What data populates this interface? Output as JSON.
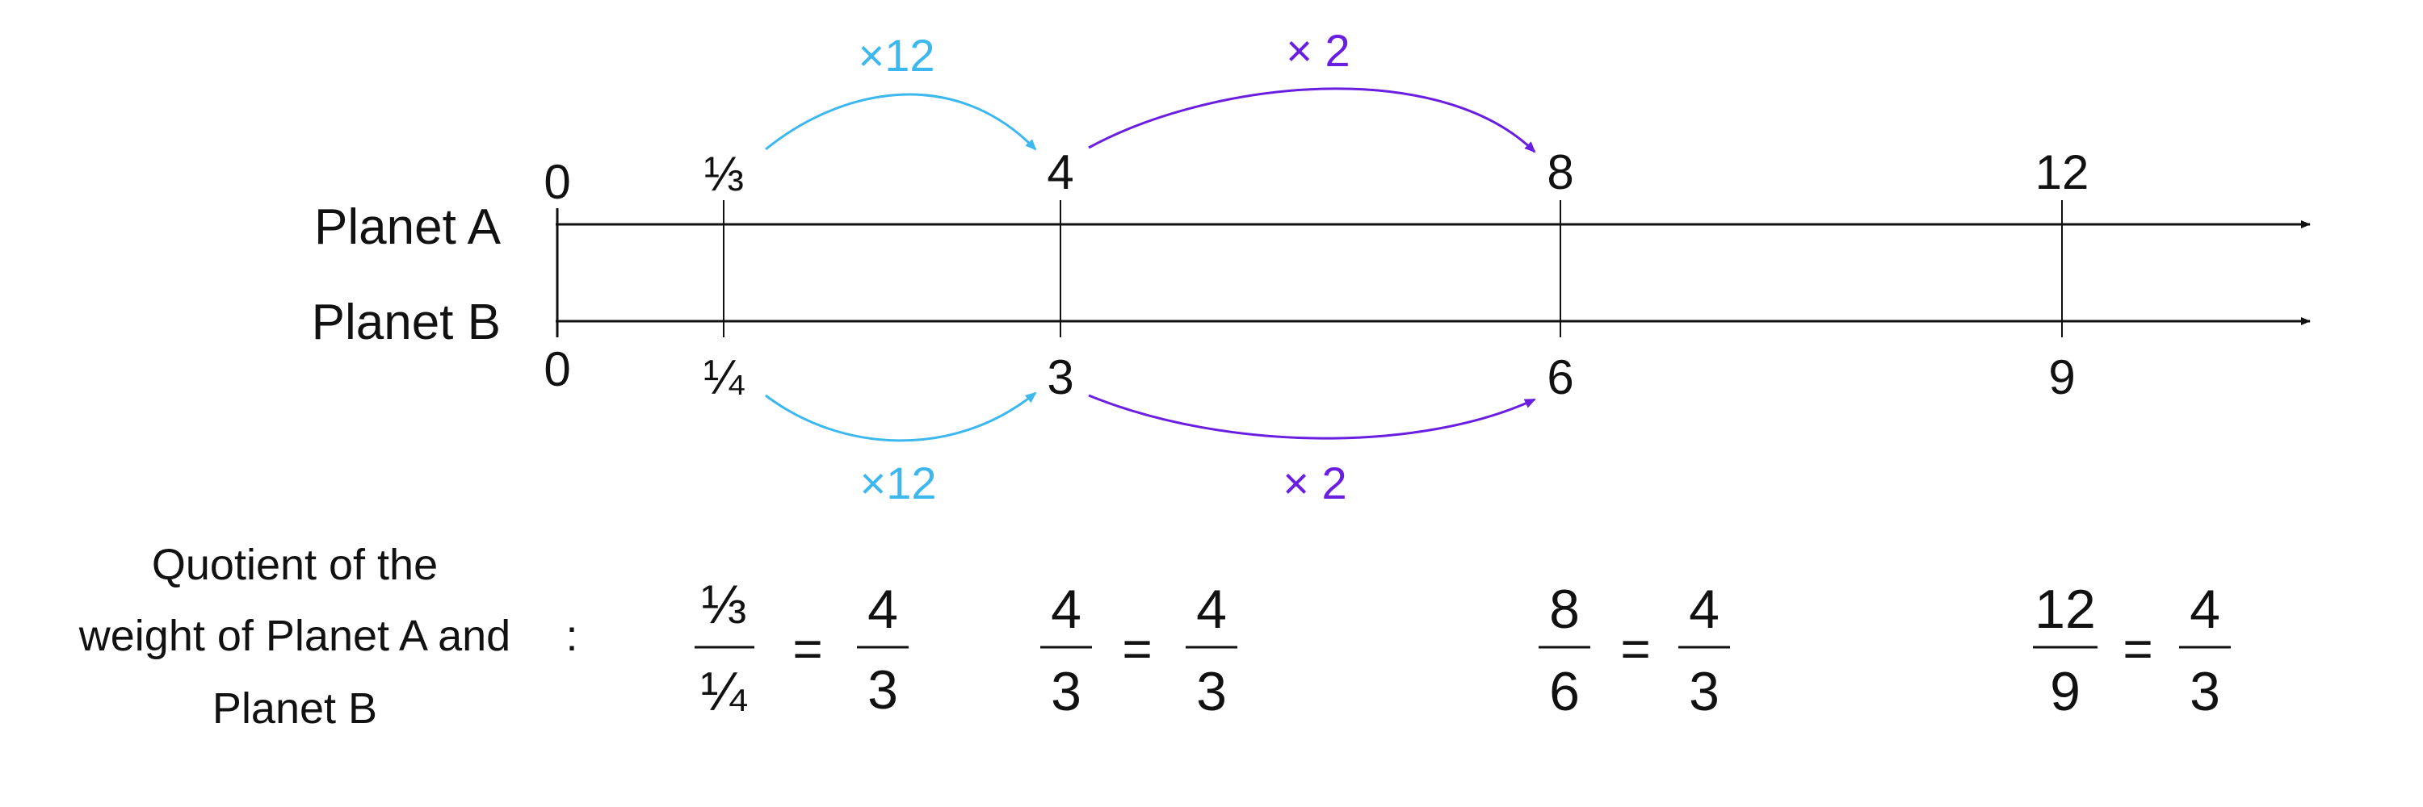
{
  "colors": {
    "ink": "#111111",
    "arrow_x12": "#3db8ee",
    "arrow_x2": "#6a1fe0"
  },
  "rows": {
    "planet_a": {
      "label": "Planet A",
      "ticks": [
        "0",
        "⅓",
        "4",
        "8",
        "12"
      ]
    },
    "planet_b": {
      "label": "Planet B",
      "ticks": [
        "0",
        "¼",
        "3",
        "6",
        "9"
      ]
    }
  },
  "arrows": {
    "top_x12": {
      "label": "×12",
      "color": "#3db8ee"
    },
    "top_x2": {
      "label": "× 2",
      "color": "#6a1fe0"
    },
    "bottom_x12": {
      "label": "×12",
      "color": "#3db8ee"
    },
    "bottom_x2": {
      "label": "× 2",
      "color": "#6a1fe0"
    }
  },
  "quotient": {
    "label_lines": [
      "Quotient of the",
      "weight of Planet A and",
      "Planet B"
    ],
    "colon": ":",
    "fractions": [
      {
        "num": "⅓",
        "den": "¼",
        "eq": "=",
        "rnum": "4",
        "rden": "3"
      },
      {
        "num": "4",
        "den": "3",
        "eq": "=",
        "rnum": "4",
        "rden": "3"
      },
      {
        "num": "8",
        "den": "6",
        "eq": "=",
        "rnum": "4",
        "rden": "3"
      },
      {
        "num": "12",
        "den": "9",
        "eq": "=",
        "rnum": "4",
        "rden": "3"
      }
    ]
  }
}
